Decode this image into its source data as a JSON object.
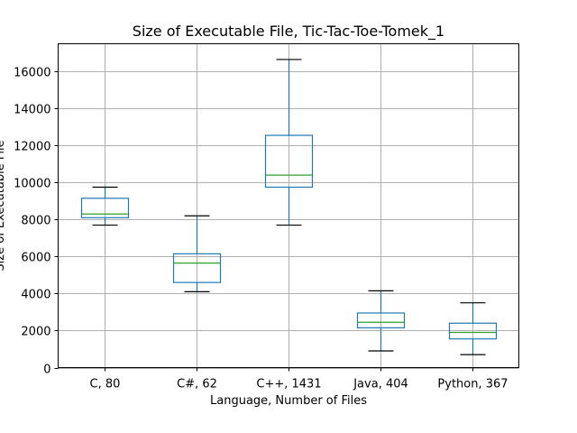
{
  "chart_data": {
    "type": "box",
    "title": "Size of Executable File, Tic-Tac-Toe-Tomek_1",
    "xlabel": "Language, Number of Files",
    "ylabel": "Size of Executable File",
    "ylim": [
      0,
      17500
    ],
    "yticks": [
      0,
      2000,
      4000,
      6000,
      8000,
      10000,
      12000,
      14000,
      16000
    ],
    "grid": true,
    "categories": [
      "C, 80",
      "C#, 62",
      "C++, 1431",
      "Java, 404",
      "Python, 367"
    ],
    "boxes": [
      {
        "category": "C, 80",
        "whisker_low": 7700,
        "q1": 8100,
        "median": 8300,
        "q3": 9150,
        "whisker_high": 9750
      },
      {
        "category": "C#, 62",
        "whisker_low": 4100,
        "q1": 4600,
        "median": 5650,
        "q3": 6150,
        "whisker_high": 8200
      },
      {
        "category": "C++, 1431",
        "whisker_low": 7700,
        "q1": 9750,
        "median": 10400,
        "q3": 12550,
        "whisker_high": 16650
      },
      {
        "category": "Java, 404",
        "whisker_low": 900,
        "q1": 2150,
        "median": 2450,
        "q3": 2950,
        "whisker_high": 4150
      },
      {
        "category": "Python, 367",
        "whisker_low": 700,
        "q1": 1550,
        "median": 1900,
        "q3": 2400,
        "whisker_high": 3500
      }
    ]
  }
}
